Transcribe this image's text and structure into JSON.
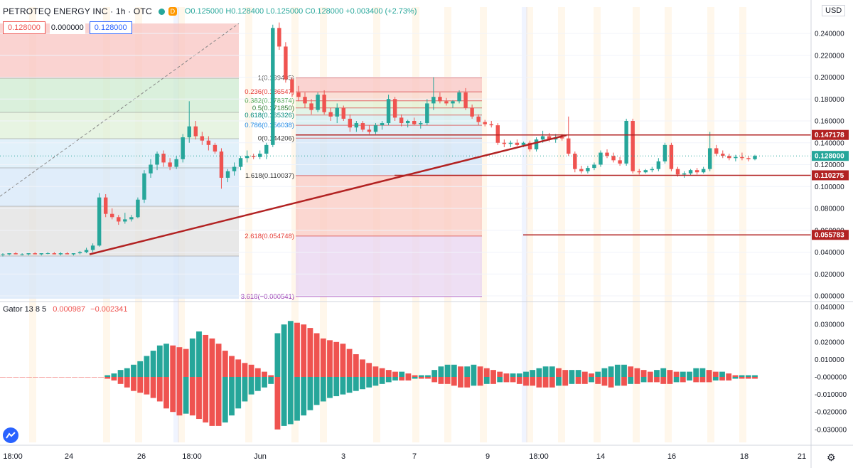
{
  "header": {
    "symbol": "PETROTEQ ENERGY INC · 1h · OTC",
    "badge": "D",
    "open": "O0.125000",
    "high": "H0.128400",
    "low": "L0.125000",
    "close": "C0.128000",
    "change": "+0.003400 (+2.73%)"
  },
  "value_boxes": [
    "0.128000",
    "0.000000",
    "0.128000"
  ],
  "currency": "USD",
  "indicator": {
    "name": "Gator 13 8 5",
    "v1": "0.000987",
    "v2": "−0.002341"
  },
  "colors": {
    "up": "#26a69a",
    "down": "#ef5350",
    "trend": "#b22222",
    "session": "#ff9800"
  },
  "chart_data": {
    "type": "candlestick",
    "price_axis": {
      "min": 0.0,
      "max": 0.25,
      "ticks": [
        "0.240000",
        "0.220000",
        "0.200000",
        "0.180000",
        "0.160000",
        "0.140000",
        "0.120000",
        "0.100000",
        "0.080000",
        "0.060000",
        "0.040000",
        "0.020000",
        "0.000000"
      ]
    },
    "gator_axis": {
      "min": -0.035,
      "max": 0.04,
      "ticks": [
        "0.040000",
        "0.030000",
        "0.020000",
        "0.010000",
        "-0.000000",
        "-0.010000",
        "-0.020000",
        "-0.030000"
      ]
    },
    "time_labels": [
      "18:00",
      "24",
      "26",
      "18:00",
      "Jun",
      "3",
      "7",
      "9",
      "18:00",
      "14",
      "16",
      "18",
      "21"
    ],
    "price_labels": [
      {
        "text": "0.147178",
        "price": 0.147178,
        "color": "#b22222"
      },
      {
        "text": "0.128000",
        "price": 0.128,
        "color": "#26a69a"
      },
      {
        "text": "0.110275",
        "price": 0.110275,
        "color": "#b22222"
      },
      {
        "text": "0.055783",
        "price": 0.055783,
        "color": "#b22222"
      }
    ],
    "fib_right": [
      {
        "label": "1(0.199495)",
        "level": "1"
      },
      {
        "label": "0.236(0.186547)",
        "level": "0.236"
      },
      {
        "label": "0.382(0.178374)",
        "level": "0.382"
      },
      {
        "label": "0.5(0.171850)",
        "level": "0.5"
      },
      {
        "label": "0.618(0.165326)",
        "level": "0.618"
      },
      {
        "label": "0.786(0.156038)",
        "level": "0.786"
      },
      {
        "label": "0(0.144206)",
        "level": "0"
      },
      {
        "label": "1.618(0.110037)",
        "level": "1.618"
      },
      {
        "label": "2.618(0.054748)",
        "level": "2.618"
      },
      {
        "label": "3.618(−0.000541)",
        "level": "3.618"
      }
    ],
    "candles": [
      [
        0.038,
        0.039,
        0.036,
        0.038
      ],
      [
        0.038,
        0.039,
        0.037,
        0.039
      ],
      [
        0.039,
        0.04,
        0.038,
        0.038
      ],
      [
        0.038,
        0.039,
        0.037,
        0.038
      ],
      [
        0.038,
        0.039,
        0.037,
        0.039
      ],
      [
        0.039,
        0.04,
        0.038,
        0.038
      ],
      [
        0.038,
        0.039,
        0.037,
        0.039
      ],
      [
        0.039,
        0.04,
        0.038,
        0.039
      ],
      [
        0.039,
        0.04,
        0.038,
        0.038
      ],
      [
        0.038,
        0.04,
        0.037,
        0.039
      ],
      [
        0.039,
        0.04,
        0.038,
        0.038
      ],
      [
        0.038,
        0.039,
        0.037,
        0.039
      ],
      [
        0.039,
        0.041,
        0.038,
        0.04
      ],
      [
        0.04,
        0.044,
        0.039,
        0.042
      ],
      [
        0.042,
        0.048,
        0.04,
        0.046
      ],
      [
        0.046,
        0.094,
        0.045,
        0.09
      ],
      [
        0.09,
        0.093,
        0.072,
        0.075
      ],
      [
        0.075,
        0.08,
        0.07,
        0.072
      ],
      [
        0.072,
        0.074,
        0.065,
        0.068
      ],
      [
        0.068,
        0.076,
        0.066,
        0.07
      ],
      [
        0.07,
        0.074,
        0.068,
        0.072
      ],
      [
        0.072,
        0.09,
        0.071,
        0.088
      ],
      [
        0.088,
        0.115,
        0.085,
        0.112
      ],
      [
        0.112,
        0.125,
        0.108,
        0.12
      ],
      [
        0.12,
        0.132,
        0.115,
        0.13
      ],
      [
        0.13,
        0.133,
        0.118,
        0.122
      ],
      [
        0.122,
        0.126,
        0.115,
        0.118
      ],
      [
        0.118,
        0.128,
        0.116,
        0.125
      ],
      [
        0.125,
        0.148,
        0.122,
        0.145
      ],
      [
        0.145,
        0.178,
        0.14,
        0.155
      ],
      [
        0.155,
        0.16,
        0.143,
        0.146
      ],
      [
        0.146,
        0.15,
        0.138,
        0.142
      ],
      [
        0.142,
        0.146,
        0.133,
        0.138
      ],
      [
        0.138,
        0.14,
        0.13,
        0.132
      ],
      [
        0.132,
        0.135,
        0.098,
        0.108
      ],
      [
        0.108,
        0.116,
        0.104,
        0.114
      ],
      [
        0.114,
        0.122,
        0.11,
        0.118
      ],
      [
        0.118,
        0.128,
        0.115,
        0.126
      ],
      [
        0.126,
        0.133,
        0.122,
        0.128
      ],
      [
        0.128,
        0.13,
        0.125,
        0.127
      ],
      [
        0.127,
        0.133,
        0.125,
        0.13
      ],
      [
        0.13,
        0.14,
        0.125,
        0.138
      ],
      [
        0.138,
        0.248,
        0.136,
        0.245
      ],
      [
        0.245,
        0.25,
        0.225,
        0.228
      ],
      [
        0.228,
        0.232,
        0.195,
        0.198
      ],
      [
        0.198,
        0.2,
        0.182,
        0.186
      ],
      [
        0.186,
        0.192,
        0.178,
        0.182
      ],
      [
        0.182,
        0.186,
        0.172,
        0.176
      ],
      [
        0.176,
        0.18,
        0.166,
        0.17
      ],
      [
        0.17,
        0.186,
        0.168,
        0.184
      ],
      [
        0.184,
        0.188,
        0.166,
        0.168
      ],
      [
        0.168,
        0.172,
        0.16,
        0.164
      ],
      [
        0.164,
        0.176,
        0.158,
        0.172
      ],
      [
        0.172,
        0.174,
        0.16,
        0.162
      ],
      [
        0.162,
        0.166,
        0.15,
        0.154
      ],
      [
        0.154,
        0.16,
        0.15,
        0.158
      ],
      [
        0.158,
        0.16,
        0.15,
        0.152
      ],
      [
        0.152,
        0.156,
        0.148,
        0.15
      ],
      [
        0.15,
        0.158,
        0.148,
        0.156
      ],
      [
        0.156,
        0.16,
        0.152,
        0.158
      ],
      [
        0.158,
        0.184,
        0.156,
        0.18
      ],
      [
        0.18,
        0.182,
        0.16,
        0.163
      ],
      [
        0.163,
        0.166,
        0.155,
        0.158
      ],
      [
        0.158,
        0.161,
        0.154,
        0.16
      ],
      [
        0.16,
        0.163,
        0.156,
        0.157
      ],
      [
        0.157,
        0.16,
        0.153,
        0.158
      ],
      [
        0.158,
        0.18,
        0.156,
        0.176
      ],
      [
        0.176,
        0.2,
        0.17,
        0.182
      ],
      [
        0.182,
        0.186,
        0.176,
        0.178
      ],
      [
        0.178,
        0.181,
        0.174,
        0.176
      ],
      [
        0.176,
        0.179,
        0.172,
        0.178
      ],
      [
        0.178,
        0.188,
        0.176,
        0.186
      ],
      [
        0.186,
        0.19,
        0.17,
        0.172
      ],
      [
        0.172,
        0.175,
        0.162,
        0.164
      ],
      [
        0.164,
        0.166,
        0.156,
        0.159
      ],
      [
        0.159,
        0.161,
        0.155,
        0.157
      ],
      [
        0.157,
        0.16,
        0.154,
        0.156
      ],
      [
        0.156,
        0.158,
        0.138,
        0.14
      ],
      [
        0.14,
        0.143,
        0.136,
        0.139
      ],
      [
        0.139,
        0.142,
        0.136,
        0.14
      ],
      [
        0.14,
        0.143,
        0.137,
        0.138
      ],
      [
        0.138,
        0.141,
        0.136,
        0.14
      ],
      [
        0.14,
        0.142,
        0.132,
        0.134
      ],
      [
        0.134,
        0.145,
        0.132,
        0.143
      ],
      [
        0.143,
        0.151,
        0.14,
        0.146
      ],
      [
        0.146,
        0.149,
        0.141,
        0.143
      ],
      [
        0.143,
        0.148,
        0.14,
        0.145
      ],
      [
        0.145,
        0.148,
        0.142,
        0.144
      ],
      [
        0.144,
        0.164,
        0.128,
        0.13
      ],
      [
        0.13,
        0.132,
        0.113,
        0.116
      ],
      [
        0.116,
        0.119,
        0.112,
        0.114
      ],
      [
        0.114,
        0.119,
        0.112,
        0.117
      ],
      [
        0.117,
        0.122,
        0.115,
        0.12
      ],
      [
        0.12,
        0.133,
        0.118,
        0.131
      ],
      [
        0.131,
        0.134,
        0.126,
        0.128
      ],
      [
        0.128,
        0.131,
        0.122,
        0.124
      ],
      [
        0.124,
        0.127,
        0.119,
        0.121
      ],
      [
        0.121,
        0.162,
        0.119,
        0.16
      ],
      [
        0.16,
        0.162,
        0.112,
        0.114
      ],
      [
        0.114,
        0.116,
        0.111,
        0.113
      ],
      [
        0.113,
        0.116,
        0.112,
        0.115
      ],
      [
        0.115,
        0.118,
        0.113,
        0.116
      ],
      [
        0.116,
        0.126,
        0.114,
        0.123
      ],
      [
        0.123,
        0.14,
        0.121,
        0.138
      ],
      [
        0.138,
        0.14,
        0.114,
        0.116
      ],
      [
        0.116,
        0.118,
        0.109,
        0.111
      ],
      [
        0.111,
        0.114,
        0.108,
        0.112
      ],
      [
        0.112,
        0.116,
        0.11,
        0.115
      ],
      [
        0.115,
        0.117,
        0.111,
        0.113
      ],
      [
        0.113,
        0.118,
        0.112,
        0.116
      ],
      [
        0.116,
        0.15,
        0.114,
        0.135
      ],
      [
        0.135,
        0.138,
        0.128,
        0.13
      ],
      [
        0.13,
        0.133,
        0.126,
        0.128
      ],
      [
        0.128,
        0.13,
        0.124,
        0.126
      ],
      [
        0.126,
        0.129,
        0.123,
        0.127
      ],
      [
        0.127,
        0.131,
        0.124,
        0.126
      ],
      [
        0.126,
        0.128,
        0.123,
        0.125
      ],
      [
        0.125,
        0.129,
        0.124,
        0.128
      ]
    ],
    "gator_upper": [
      0.0,
      0.0,
      0.0,
      0.0,
      0.0,
      0.0,
      0.0,
      0.0,
      0.0,
      0.0,
      0.0,
      0.0,
      0.0,
      0.0,
      0.0,
      0.0,
      0.001,
      0.002,
      0.004,
      0.005,
      0.007,
      0.009,
      0.012,
      0.015,
      0.018,
      0.019,
      0.018,
      0.017,
      0.016,
      0.022,
      0.026,
      0.024,
      0.022,
      0.019,
      0.015,
      0.012,
      0.01,
      0.008,
      0.007,
      0.005,
      0.003,
      0.001,
      0.025,
      0.03,
      0.032,
      0.031,
      0.03,
      0.028,
      0.025,
      0.022,
      0.021,
      0.02,
      0.019,
      0.016,
      0.013,
      0.01,
      0.008,
      0.006,
      0.005,
      0.004,
      0.003,
      0.003,
      0.002,
      0.001,
      0.001,
      0.001,
      0.004,
      0.006,
      0.007,
      0.007,
      0.006,
      0.006,
      0.007,
      0.006,
      0.005,
      0.004,
      0.003,
      0.002,
      0.002,
      0.002,
      0.003,
      0.004,
      0.005,
      0.006,
      0.006,
      0.005,
      0.004,
      0.004,
      0.004,
      0.003,
      0.002,
      0.003,
      0.005,
      0.006,
      0.007,
      0.007,
      0.006,
      0.005,
      0.004,
      0.003,
      0.004,
      0.005,
      0.004,
      0.003,
      0.003,
      0.003,
      0.005,
      0.005,
      0.004,
      0.003,
      0.003,
      0.002,
      0.001,
      0.001,
      0.001,
      0.001
    ],
    "gator_lower": [
      0.0,
      0.0,
      0.0,
      0.0,
      0.0,
      0.0,
      0.0,
      0.0,
      0.0,
      0.0,
      0.0,
      0.0,
      0.0,
      0.0,
      0.0,
      0.0,
      0.001,
      0.002,
      0.004,
      0.006,
      0.008,
      0.009,
      0.01,
      0.012,
      0.014,
      0.018,
      0.02,
      0.022,
      0.021,
      0.022,
      0.024,
      0.026,
      0.028,
      0.028,
      0.026,
      0.022,
      0.018,
      0.014,
      0.01,
      0.008,
      0.006,
      0.004,
      0.03,
      0.028,
      0.027,
      0.025,
      0.022,
      0.019,
      0.016,
      0.014,
      0.012,
      0.011,
      0.01,
      0.009,
      0.008,
      0.007,
      0.006,
      0.005,
      0.004,
      0.003,
      0.002,
      0.002,
      0.002,
      0.001,
      0.001,
      0.001,
      0.003,
      0.004,
      0.004,
      0.005,
      0.006,
      0.006,
      0.005,
      0.005,
      0.004,
      0.004,
      0.003,
      0.003,
      0.003,
      0.004,
      0.005,
      0.005,
      0.006,
      0.006,
      0.006,
      0.005,
      0.005,
      0.004,
      0.004,
      0.004,
      0.003,
      0.004,
      0.005,
      0.006,
      0.005,
      0.005,
      0.004,
      0.004,
      0.003,
      0.003,
      0.003,
      0.004,
      0.004,
      0.003,
      0.003,
      0.002,
      0.003,
      0.003,
      0.003,
      0.002,
      0.002,
      0.002,
      0.001,
      0.001,
      0.001,
      0.001
    ]
  }
}
